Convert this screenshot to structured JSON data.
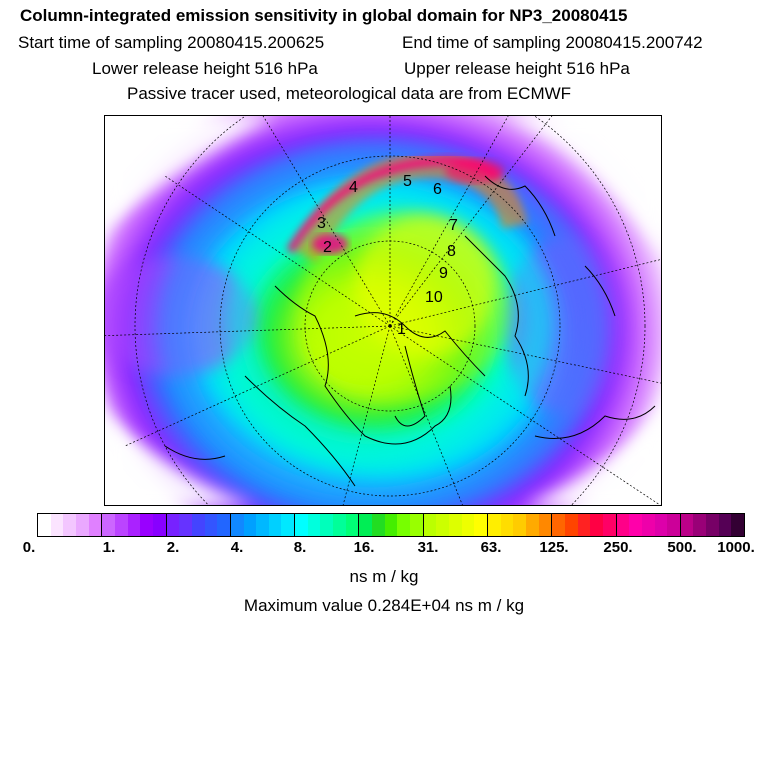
{
  "header": {
    "title": "Column-integrated emission sensitivity in global domain for NP3_20080415",
    "start_time": "Start time of sampling 20080415.200625",
    "end_time": "End time of sampling 20080415.200742",
    "lower_height": "Lower release height  516 hPa",
    "upper_height": "Upper release height  516 hPa",
    "tracer_note": "Passive tracer used, meteorological data are from ECMWF"
  },
  "map": {
    "projection": "polar-stereographic-north",
    "trajectory_labels": [
      "1",
      "2",
      "3",
      "4",
      "5",
      "6",
      "7",
      "8",
      "9",
      "10"
    ],
    "colors": {
      "coastline": "#000000",
      "grid": "#000000",
      "plume_max": "#ff0080",
      "background": "#ffffff"
    }
  },
  "colorbar": {
    "tick_labels": [
      "0.",
      "1.",
      "2.",
      "4.",
      "8.",
      "16.",
      "31.",
      "63.",
      "125.",
      "250.",
      "500.",
      "1000."
    ],
    "units": "ns m / kg",
    "colors": [
      "#ffffff",
      "#fbe4ff",
      "#f3c6ff",
      "#eaa8ff",
      "#e080ff",
      "#cc66ff",
      "#bb44ff",
      "#aa22ff",
      "#9900ff",
      "#8800ff",
      "#7722ff",
      "#6633ff",
      "#4444ff",
      "#3355ff",
      "#2266ff",
      "#1188ff",
      "#00a0ff",
      "#00b8ff",
      "#00d0ff",
      "#00e8ff",
      "#00ffff",
      "#00ffdd",
      "#00ffbb",
      "#00ff99",
      "#00ff77",
      "#00ee55",
      "#22dd22",
      "#44ee00",
      "#77ff00",
      "#99ff00",
      "#bbff00",
      "#ccff00",
      "#ddff00",
      "#eeff00",
      "#ffff00",
      "#ffee00",
      "#ffdd00",
      "#ffcc00",
      "#ffaa00",
      "#ff8800",
      "#ff6600",
      "#ff4400",
      "#ff2222",
      "#ff0044",
      "#ff0066",
      "#ff0088",
      "#ff00aa",
      "#ee00aa",
      "#dd00aa",
      "#cc0099",
      "#bb0088",
      "#990077",
      "#770066",
      "#550055",
      "#330033"
    ]
  },
  "footer": {
    "maximum_value": "Maximum value  0.284E+04 ns m / kg"
  }
}
